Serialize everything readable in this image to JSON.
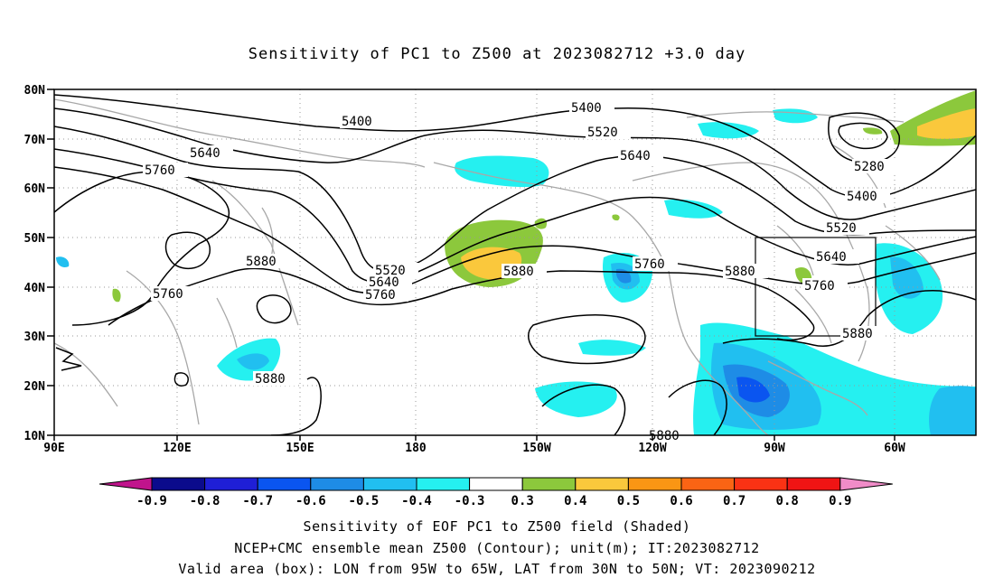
{
  "title": "Sensitivity of PC1 to Z500 at 2023082712 +3.0 day",
  "lat_labels": [
    "80N",
    "70N",
    "60N",
    "50N",
    "40N",
    "30N",
    "20N",
    "10N"
  ],
  "lon_labels": [
    "90E",
    "120E",
    "150E",
    "180",
    "150W",
    "120W",
    "90W",
    "60W"
  ],
  "contour_labels": {
    "c5400a": "5400",
    "c5400b": "5400",
    "c5400c": "5400",
    "c5520a": "5520",
    "c5520b": "5520",
    "c5520c": "5520",
    "c5640a": "5640",
    "c5640b": "5640",
    "c5640c": "5640",
    "c5640d": "5640",
    "c5760a": "5760",
    "c5760b": "5760",
    "c5760c": "5760",
    "c5760d": "5760",
    "c5760e": "5760",
    "c5880a": "5880",
    "c5880b": "5880",
    "c5880c": "5880",
    "c5880d": "5880",
    "c5880e": "5880",
    "c5880f": "5880",
    "c5280": "5280"
  },
  "colorbar": {
    "labels": [
      "-0.9",
      "-0.8",
      "-0.7",
      "-0.6",
      "-0.5",
      "-0.4",
      "-0.3",
      "0.3",
      "0.4",
      "0.5",
      "0.6",
      "0.7",
      "0.8",
      "0.9"
    ],
    "colors": [
      "#0b0b8c",
      "#1f1fd6",
      "#0a55f0",
      "#1e8ce6",
      "#21bff0",
      "#25f0f0",
      "#ffffff",
      "#8cc83c",
      "#fac83c",
      "#fa9614",
      "#fa6414",
      "#fa3214",
      "#f01414"
    ],
    "low_color": "#c0148c",
    "high_color": "#f08cc8"
  },
  "captions": {
    "line1": "Sensitivity of EOF PC1 to Z500 field (Shaded)",
    "line2": "NCEP+CMC ensemble mean Z500 (Contour); unit(m); IT:2023082712",
    "line3": "Valid area (box): LON from 95W to 65W, LAT from 30N to 50N; VT: 2023090212"
  }
}
